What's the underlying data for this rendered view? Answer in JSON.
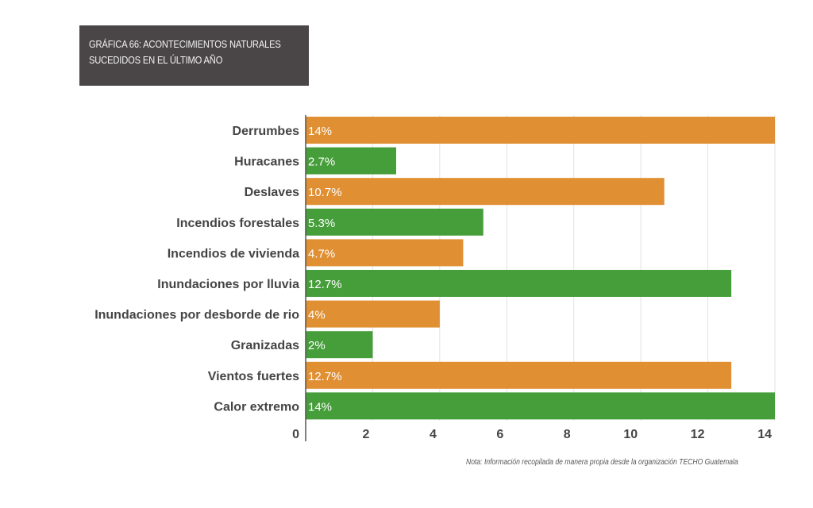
{
  "chart_data": {
    "type": "bar",
    "orientation": "horizontal",
    "title": "GRÁFICA 66: ACONTECIMIENTOS NATURALES SUCEDIDOS EN EL ÚLTIMO AÑO",
    "title_lines": [
      "GRÁFICA 66: ACONTECIMIENTOS NATURALES",
      "SUCEDIDOS EN EL ÚLTIMO AÑO"
    ],
    "categories": [
      "Derrumbes",
      "Huracanes",
      "Deslaves",
      "Incendios forestales",
      "Incendios de vivienda",
      "Inundaciones por lluvia",
      "Inundaciones por desborde de rio",
      "Granizadas",
      "Vientos fuertes",
      "Calor extremo"
    ],
    "values": [
      14,
      2.7,
      10.7,
      5.3,
      4.7,
      12.7,
      4,
      2,
      12.7,
      14
    ],
    "data_labels": [
      "14%",
      "2.7%",
      "10.7%",
      "5.3%",
      "4.7%",
      "12.7%",
      "4%",
      "2%",
      "12.7%",
      "14%"
    ],
    "bar_colors": [
      "#e08f32",
      "#459e3a",
      "#e08f32",
      "#459e3a",
      "#e08f32",
      "#459e3a",
      "#e08f32",
      "#459e3a",
      "#e08f32",
      "#459e3a"
    ],
    "xlabel": "",
    "ylabel": "",
    "xlim": [
      0,
      14
    ],
    "xticks": [
      0,
      2,
      4,
      6,
      8,
      10,
      12,
      14
    ],
    "grid": true,
    "legend": "none",
    "note": "Nota: Información recopilada de manera propia desde la organización TECHO Guatemala"
  },
  "colors": {
    "orange": "#e08f32",
    "green": "#459e3a",
    "title_bg": "#4a4648"
  }
}
